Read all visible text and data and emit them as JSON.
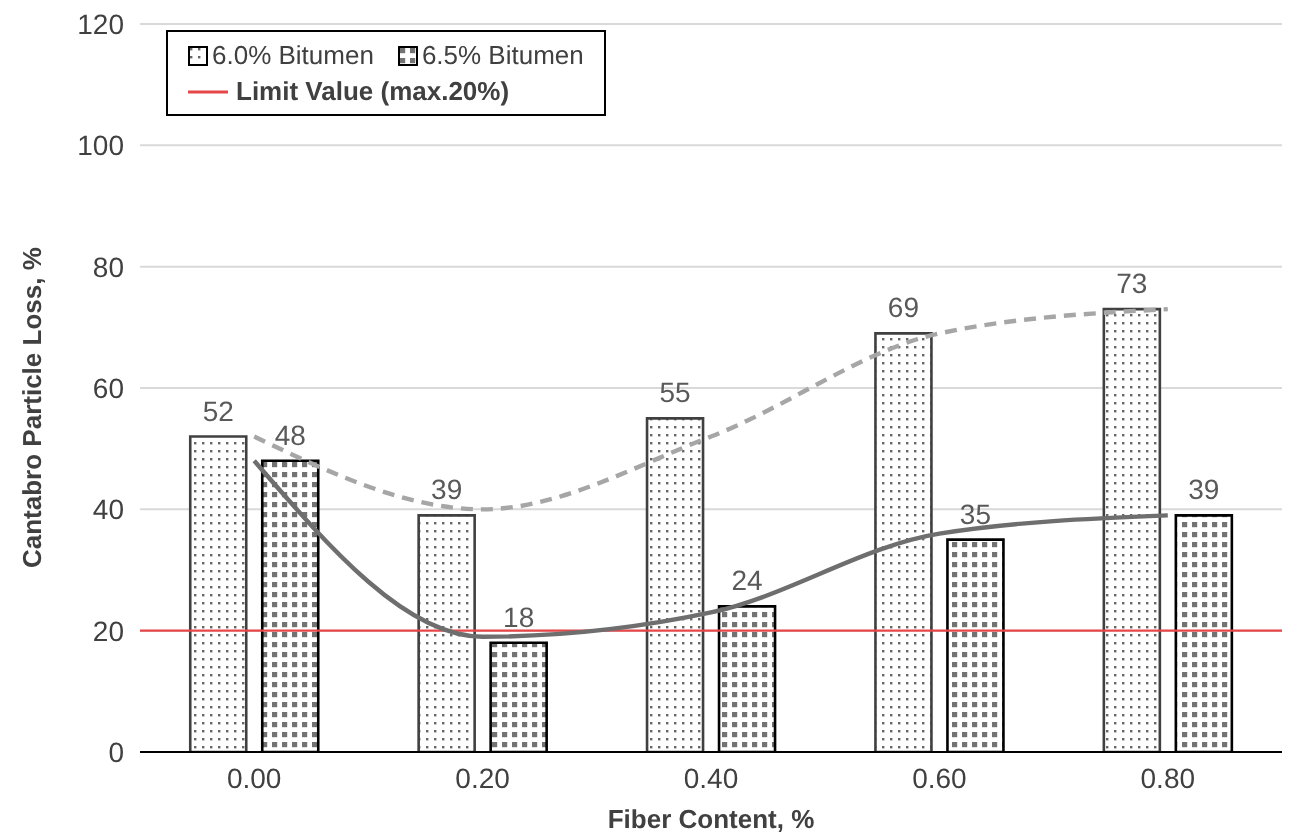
{
  "chart_data": {
    "type": "bar",
    "xlabel": "Fiber Content, %",
    "ylabel": "Cantabro Particle Loss, %",
    "categories": [
      "0.00",
      "0.20",
      "0.40",
      "0.60",
      "0.80"
    ],
    "series": [
      {
        "name": "6.0% Bitumen",
        "color": "#404040",
        "values": [
          52,
          39,
          55,
          69,
          73
        ],
        "value_labels": [
          "52",
          "39",
          "55",
          "69",
          "73"
        ]
      },
      {
        "name": "6.5% Bitumen",
        "color": "#000000",
        "values": [
          48,
          18,
          24,
          35,
          39
        ],
        "value_labels": [
          "48",
          "18",
          "24",
          "35",
          "39"
        ]
      },
      {
        "type": "line",
        "color": "#a6a6a6",
        "line_style": "dashed",
        "values": [
          52,
          40,
          52,
          69,
          73
        ]
      },
      {
        "type": "line",
        "color": "#6e6e6e",
        "line_style": "solid",
        "values": [
          48,
          19,
          23,
          36,
          39
        ]
      }
    ],
    "ref_lines": [
      {
        "axis": "y",
        "value": 20,
        "label": "Limit Value (max.20%)",
        "color": "#e8474a"
      }
    ],
    "ylim": [
      0,
      120
    ],
    "yticks": [
      0,
      20,
      40,
      60,
      80,
      100,
      120
    ],
    "grid": "y",
    "legend": "top left"
  }
}
